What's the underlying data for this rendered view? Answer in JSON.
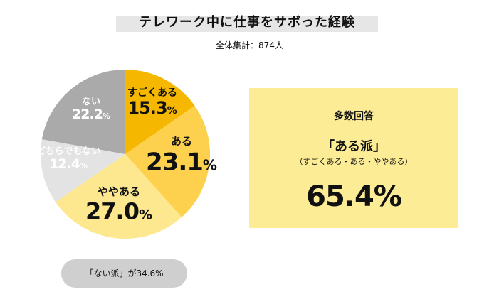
{
  "header": {
    "title": "テレワーク中に仕事をサボった経験",
    "subtitle": "全体集計：874人"
  },
  "chart_data": {
    "type": "pie",
    "title": "テレワーク中に仕事をサボった経験",
    "subtitle": "全体集計：874人",
    "unit": "%",
    "slices": [
      {
        "label": "すごくある",
        "value": 15.3,
        "display": "15.3",
        "color": "#f5b700",
        "label_color": "#111111"
      },
      {
        "label": "ある",
        "value": 23.1,
        "display": "23.1",
        "color": "#fdd14e",
        "label_color": "#111111"
      },
      {
        "label": "ややある",
        "value": 27.0,
        "display": "27.0",
        "color": "#fde88f",
        "label_color": "#111111"
      },
      {
        "label": "どちらでもない",
        "value": 12.4,
        "display": "12.4",
        "color": "#e3e3e3",
        "label_color": "#ffffff"
      },
      {
        "label": "ない",
        "value": 22.2,
        "display": "22.2",
        "color": "#aaaaaa",
        "label_color": "#ffffff"
      }
    ]
  },
  "summary_box": {
    "title": "多数回答",
    "label": "「ある派」",
    "note": "（すごくある・ある・ややある）",
    "value": "65.4%"
  },
  "footer_pill": {
    "text": "「ない派」が34.6%"
  }
}
